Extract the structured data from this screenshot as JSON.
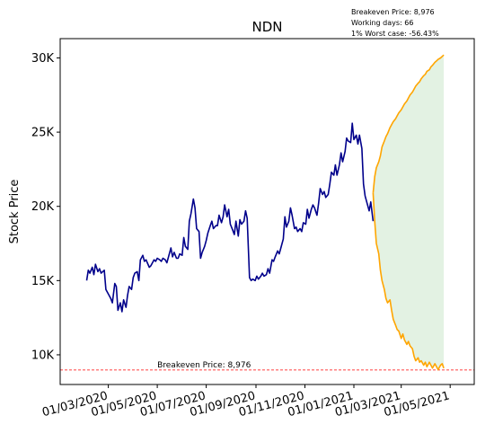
{
  "info": {
    "line1": "Breakeven Price: 8,976",
    "line2": "Working days: 66",
    "line3": "1% Worst case: -56.43%"
  },
  "chart_data": {
    "type": "line",
    "title": "NDN",
    "xlabel": "",
    "ylabel": "Stock Price",
    "ylim": [
      8000,
      31300
    ],
    "xlim": [
      "2020-01-01",
      "2021-05-31"
    ],
    "yticks": [
      {
        "value": 10000,
        "label": "10K"
      },
      {
        "value": 15000,
        "label": "15K"
      },
      {
        "value": 20000,
        "label": "20K"
      },
      {
        "value": 25000,
        "label": "25K"
      },
      {
        "value": 30000,
        "label": "30K"
      }
    ],
    "xticks": [
      {
        "date": "2020-03-01",
        "label": "01/03/2020"
      },
      {
        "date": "2020-05-01",
        "label": "01/05/2020"
      },
      {
        "date": "2020-07-01",
        "label": "01/07/2020"
      },
      {
        "date": "2020-09-01",
        "label": "01/09/2020"
      },
      {
        "date": "2020-11-01",
        "label": "01/11/2020"
      },
      {
        "date": "2021-01-01",
        "label": "01/01/2021"
      },
      {
        "date": "2021-03-01",
        "label": "01/03/2021"
      },
      {
        "date": "2021-05-01",
        "label": "01/05/2021"
      }
    ],
    "breakeven": {
      "value": 8976,
      "label": "Breakeven Price: 8,976",
      "color": "#ff0000"
    },
    "series": [
      {
        "role": "history",
        "color": "#00008b",
        "points": [
          [
            "2020-02-03",
            15000
          ],
          [
            "2020-02-05",
            15700
          ],
          [
            "2020-02-07",
            15500
          ],
          [
            "2020-02-10",
            15900
          ],
          [
            "2020-02-12",
            15400
          ],
          [
            "2020-02-14",
            16100
          ],
          [
            "2020-02-17",
            15600
          ],
          [
            "2020-02-19",
            15800
          ],
          [
            "2020-02-21",
            15500
          ],
          [
            "2020-02-25",
            15700
          ],
          [
            "2020-02-27",
            14400
          ],
          [
            "2020-03-02",
            14000
          ],
          [
            "2020-03-04",
            13800
          ],
          [
            "2020-03-06",
            13500
          ],
          [
            "2020-03-09",
            14800
          ],
          [
            "2020-03-11",
            14600
          ],
          [
            "2020-03-13",
            13000
          ],
          [
            "2020-03-16",
            13500
          ],
          [
            "2020-03-18",
            12900
          ],
          [
            "2020-03-20",
            13700
          ],
          [
            "2020-03-23",
            13200
          ],
          [
            "2020-03-25",
            14000
          ],
          [
            "2020-03-27",
            14600
          ],
          [
            "2020-03-30",
            14400
          ],
          [
            "2020-04-01",
            15200
          ],
          [
            "2020-04-03",
            15500
          ],
          [
            "2020-04-06",
            15600
          ],
          [
            "2020-04-08",
            15000
          ],
          [
            "2020-04-10",
            16400
          ],
          [
            "2020-04-13",
            16700
          ],
          [
            "2020-04-15",
            16300
          ],
          [
            "2020-04-17",
            16400
          ],
          [
            "2020-04-21",
            15900
          ],
          [
            "2020-04-23",
            16000
          ],
          [
            "2020-04-27",
            16400
          ],
          [
            "2020-04-29",
            16300
          ],
          [
            "2020-05-01",
            16500
          ],
          [
            "2020-05-04",
            16400
          ],
          [
            "2020-05-06",
            16300
          ],
          [
            "2020-05-08",
            16500
          ],
          [
            "2020-05-11",
            16400
          ],
          [
            "2020-05-13",
            16200
          ],
          [
            "2020-05-15",
            16600
          ],
          [
            "2020-05-18",
            17200
          ],
          [
            "2020-05-20",
            16600
          ],
          [
            "2020-05-22",
            16900
          ],
          [
            "2020-05-25",
            16500
          ],
          [
            "2020-05-27",
            16500
          ],
          [
            "2020-05-29",
            16800
          ],
          [
            "2020-06-01",
            16700
          ],
          [
            "2020-06-03",
            17900
          ],
          [
            "2020-06-05",
            17300
          ],
          [
            "2020-06-08",
            17100
          ],
          [
            "2020-06-10",
            19000
          ],
          [
            "2020-06-12",
            19500
          ],
          [
            "2020-06-15",
            20500
          ],
          [
            "2020-06-17",
            19900
          ],
          [
            "2020-06-19",
            18500
          ],
          [
            "2020-06-22",
            18300
          ],
          [
            "2020-06-24",
            16500
          ],
          [
            "2020-06-26",
            16900
          ],
          [
            "2020-06-29",
            17300
          ],
          [
            "2020-07-01",
            17700
          ],
          [
            "2020-07-03",
            18200
          ],
          [
            "2020-07-06",
            18700
          ],
          [
            "2020-07-08",
            19000
          ],
          [
            "2020-07-10",
            18500
          ],
          [
            "2020-07-13",
            18700
          ],
          [
            "2020-07-15",
            18700
          ],
          [
            "2020-07-17",
            19400
          ],
          [
            "2020-07-20",
            18900
          ],
          [
            "2020-07-22",
            19300
          ],
          [
            "2020-07-24",
            20100
          ],
          [
            "2020-07-27",
            19300
          ],
          [
            "2020-07-29",
            19800
          ],
          [
            "2020-07-31",
            18800
          ],
          [
            "2020-08-03",
            18400
          ],
          [
            "2020-08-05",
            18100
          ],
          [
            "2020-08-07",
            19000
          ],
          [
            "2020-08-10",
            18000
          ],
          [
            "2020-08-12",
            19100
          ],
          [
            "2020-08-14",
            18800
          ],
          [
            "2020-08-17",
            19000
          ],
          [
            "2020-08-19",
            19700
          ],
          [
            "2020-08-21",
            19200
          ],
          [
            "2020-08-24",
            15200
          ],
          [
            "2020-08-26",
            15000
          ],
          [
            "2020-08-28",
            15100
          ],
          [
            "2020-08-31",
            15000
          ],
          [
            "2020-09-02",
            15300
          ],
          [
            "2020-09-04",
            15100
          ],
          [
            "2020-09-07",
            15300
          ],
          [
            "2020-09-09",
            15500
          ],
          [
            "2020-09-11",
            15300
          ],
          [
            "2020-09-14",
            15400
          ],
          [
            "2020-09-16",
            15800
          ],
          [
            "2020-09-18",
            15500
          ],
          [
            "2020-09-21",
            16400
          ],
          [
            "2020-09-23",
            16300
          ],
          [
            "2020-09-25",
            16600
          ],
          [
            "2020-09-28",
            17000
          ],
          [
            "2020-09-30",
            16800
          ],
          [
            "2020-10-02",
            17200
          ],
          [
            "2020-10-05",
            17800
          ],
          [
            "2020-10-07",
            19300
          ],
          [
            "2020-10-09",
            18600
          ],
          [
            "2020-10-12",
            19000
          ],
          [
            "2020-10-14",
            19900
          ],
          [
            "2020-10-16",
            19400
          ],
          [
            "2020-10-19",
            18500
          ],
          [
            "2020-10-21",
            18600
          ],
          [
            "2020-10-23",
            18300
          ],
          [
            "2020-10-26",
            18500
          ],
          [
            "2020-10-28",
            18300
          ],
          [
            "2020-10-30",
            18900
          ],
          [
            "2020-11-02",
            18800
          ],
          [
            "2020-11-04",
            19800
          ],
          [
            "2020-11-06",
            19200
          ],
          [
            "2020-11-09",
            19800
          ],
          [
            "2020-11-11",
            20100
          ],
          [
            "2020-11-13",
            19900
          ],
          [
            "2020-11-16",
            19400
          ],
          [
            "2020-11-18",
            20200
          ],
          [
            "2020-11-20",
            21200
          ],
          [
            "2020-11-23",
            20800
          ],
          [
            "2020-11-25",
            21000
          ],
          [
            "2020-11-27",
            20600
          ],
          [
            "2020-11-30",
            20800
          ],
          [
            "2020-12-02",
            21500
          ],
          [
            "2020-12-04",
            22300
          ],
          [
            "2020-12-07",
            22100
          ],
          [
            "2020-12-09",
            22800
          ],
          [
            "2020-12-11",
            22100
          ],
          [
            "2020-12-14",
            22800
          ],
          [
            "2020-12-16",
            23600
          ],
          [
            "2020-12-18",
            23000
          ],
          [
            "2020-12-21",
            23700
          ],
          [
            "2020-12-23",
            24600
          ],
          [
            "2020-12-25",
            24400
          ],
          [
            "2020-12-28",
            24300
          ],
          [
            "2020-12-30",
            25600
          ],
          [
            "2021-01-01",
            24500
          ],
          [
            "2021-01-04",
            24800
          ],
          [
            "2021-01-06",
            24200
          ],
          [
            "2021-01-08",
            24800
          ],
          [
            "2021-01-11",
            23900
          ],
          [
            "2021-01-13",
            21500
          ],
          [
            "2021-01-15",
            20700
          ],
          [
            "2021-01-18",
            20100
          ],
          [
            "2021-01-20",
            19700
          ],
          [
            "2021-01-22",
            20300
          ],
          [
            "2021-01-25",
            19000
          ]
        ]
      },
      {
        "role": "upper-scenario",
        "color": "#ffa500",
        "points": [
          [
            "2021-01-25",
            20900
          ],
          [
            "2021-01-27",
            22000
          ],
          [
            "2021-01-29",
            22600
          ],
          [
            "2021-02-01",
            23000
          ],
          [
            "2021-02-03",
            23400
          ],
          [
            "2021-02-05",
            24000
          ],
          [
            "2021-02-08",
            24400
          ],
          [
            "2021-02-10",
            24700
          ],
          [
            "2021-02-12",
            24900
          ],
          [
            "2021-02-15",
            25300
          ],
          [
            "2021-02-17",
            25500
          ],
          [
            "2021-02-19",
            25700
          ],
          [
            "2021-02-22",
            25900
          ],
          [
            "2021-02-24",
            26100
          ],
          [
            "2021-02-26",
            26300
          ],
          [
            "2021-03-01",
            26500
          ],
          [
            "2021-03-03",
            26700
          ],
          [
            "2021-03-05",
            26900
          ],
          [
            "2021-03-08",
            27100
          ],
          [
            "2021-03-10",
            27300
          ],
          [
            "2021-03-12",
            27500
          ],
          [
            "2021-03-15",
            27700
          ],
          [
            "2021-03-17",
            27900
          ],
          [
            "2021-03-19",
            28100
          ],
          [
            "2021-03-22",
            28300
          ],
          [
            "2021-03-24",
            28400
          ],
          [
            "2021-03-26",
            28600
          ],
          [
            "2021-03-29",
            28800
          ],
          [
            "2021-03-31",
            28900
          ],
          [
            "2021-04-02",
            29100
          ],
          [
            "2021-04-05",
            29200
          ],
          [
            "2021-04-07",
            29400
          ],
          [
            "2021-04-09",
            29500
          ],
          [
            "2021-04-12",
            29700
          ],
          [
            "2021-04-14",
            29800
          ],
          [
            "2021-04-16",
            29900
          ],
          [
            "2021-04-19",
            30000
          ],
          [
            "2021-04-21",
            30100
          ],
          [
            "2021-04-23",
            30200
          ]
        ]
      },
      {
        "role": "lower-scenario",
        "color": "#ffa500",
        "points": [
          [
            "2021-01-25",
            20900
          ],
          [
            "2021-01-27",
            19000
          ],
          [
            "2021-01-29",
            17500
          ],
          [
            "2021-02-01",
            16800
          ],
          [
            "2021-02-03",
            15700
          ],
          [
            "2021-02-05",
            15000
          ],
          [
            "2021-02-08",
            14400
          ],
          [
            "2021-02-10",
            13800
          ],
          [
            "2021-02-12",
            13500
          ],
          [
            "2021-02-15",
            13700
          ],
          [
            "2021-02-17",
            13000
          ],
          [
            "2021-02-19",
            12400
          ],
          [
            "2021-02-22",
            12000
          ],
          [
            "2021-02-24",
            11700
          ],
          [
            "2021-02-26",
            11600
          ],
          [
            "2021-03-01",
            11100
          ],
          [
            "2021-03-03",
            11400
          ],
          [
            "2021-03-05",
            11000
          ],
          [
            "2021-03-08",
            10700
          ],
          [
            "2021-03-10",
            10900
          ],
          [
            "2021-03-12",
            10600
          ],
          [
            "2021-03-15",
            10400
          ],
          [
            "2021-03-17",
            9900
          ],
          [
            "2021-03-19",
            9600
          ],
          [
            "2021-03-22",
            9800
          ],
          [
            "2021-03-24",
            9500
          ],
          [
            "2021-03-26",
            9600
          ],
          [
            "2021-03-29",
            9300
          ],
          [
            "2021-03-31",
            9500
          ],
          [
            "2021-04-02",
            9200
          ],
          [
            "2021-04-05",
            9500
          ],
          [
            "2021-04-07",
            9300
          ],
          [
            "2021-04-09",
            9100
          ],
          [
            "2021-04-12",
            9400
          ],
          [
            "2021-04-14",
            9200
          ],
          [
            "2021-04-16",
            9000
          ],
          [
            "2021-04-19",
            9300
          ],
          [
            "2021-04-21",
            9400
          ],
          [
            "2021-04-23",
            9100
          ]
        ]
      }
    ],
    "fill_between": {
      "color": "#e3f2e3",
      "between": [
        "upper-scenario",
        "lower-scenario"
      ]
    },
    "grid": false,
    "legend": "none"
  }
}
